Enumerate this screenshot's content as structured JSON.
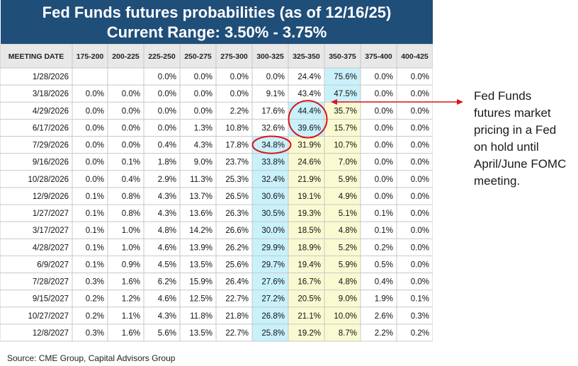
{
  "title": {
    "line1": "Fed Funds futures probabilities (as of 12/16/25)",
    "line2": "Current Range: 3.50% - 3.75%"
  },
  "annotation": {
    "lines": [
      "Fed Funds",
      "futures market",
      "pricing in a Fed",
      "on hold until",
      "April/June FOMC",
      "meeting."
    ]
  },
  "source": "Source: CME Group, Capital Advisors Group",
  "colors": {
    "title_bg": "#1f4e79",
    "current_range_col": "#fafad2",
    "adjacent_col": "#c9f1fb",
    "header_bg": "#e8e8e8",
    "annotation_red": "#d9151b"
  },
  "chart_data": {
    "type": "table",
    "columns": [
      "MEETING DATE",
      "175-200",
      "200-225",
      "225-250",
      "250-275",
      "275-300",
      "300-325",
      "325-350",
      "350-375",
      "375-400",
      "400-425"
    ],
    "rows": [
      [
        "1/28/2026",
        "",
        "",
        "0.0%",
        "0.0%",
        "0.0%",
        "0.0%",
        "24.4%",
        "75.6%",
        "0.0%",
        "0.0%"
      ],
      [
        "3/18/2026",
        "0.0%",
        "0.0%",
        "0.0%",
        "0.0%",
        "0.0%",
        "9.1%",
        "43.4%",
        "47.5%",
        "0.0%",
        "0.0%"
      ],
      [
        "4/29/2026",
        "0.0%",
        "0.0%",
        "0.0%",
        "0.0%",
        "2.2%",
        "17.6%",
        "44.4%",
        "35.7%",
        "0.0%",
        "0.0%"
      ],
      [
        "6/17/2026",
        "0.0%",
        "0.0%",
        "0.0%",
        "1.3%",
        "10.8%",
        "32.6%",
        "39.6%",
        "15.7%",
        "0.0%",
        "0.0%"
      ],
      [
        "7/29/2026",
        "0.0%",
        "0.0%",
        "0.4%",
        "4.3%",
        "17.8%",
        "34.8%",
        "31.9%",
        "10.7%",
        "0.0%",
        "0.0%"
      ],
      [
        "9/16/2026",
        "0.0%",
        "0.1%",
        "1.8%",
        "9.0%",
        "23.7%",
        "33.8%",
        "24.6%",
        "7.0%",
        "0.0%",
        "0.0%"
      ],
      [
        "10/28/2026",
        "0.0%",
        "0.4%",
        "2.9%",
        "11.3%",
        "25.3%",
        "32.4%",
        "21.9%",
        "5.9%",
        "0.0%",
        "0.0%"
      ],
      [
        "12/9/2026",
        "0.1%",
        "0.8%",
        "4.3%",
        "13.7%",
        "26.5%",
        "30.6%",
        "19.1%",
        "4.9%",
        "0.0%",
        "0.0%"
      ],
      [
        "1/27/2027",
        "0.1%",
        "0.8%",
        "4.3%",
        "13.6%",
        "26.3%",
        "30.5%",
        "19.3%",
        "5.1%",
        "0.1%",
        "0.0%"
      ],
      [
        "3/17/2027",
        "0.1%",
        "1.0%",
        "4.8%",
        "14.2%",
        "26.6%",
        "30.0%",
        "18.5%",
        "4.8%",
        "0.1%",
        "0.0%"
      ],
      [
        "4/28/2027",
        "0.1%",
        "1.0%",
        "4.6%",
        "13.9%",
        "26.2%",
        "29.9%",
        "18.9%",
        "5.2%",
        "0.2%",
        "0.0%"
      ],
      [
        "6/9/2027",
        "0.1%",
        "0.9%",
        "4.5%",
        "13.5%",
        "25.6%",
        "29.7%",
        "19.4%",
        "5.9%",
        "0.5%",
        "0.0%"
      ],
      [
        "7/28/2027",
        "0.3%",
        "1.6%",
        "6.2%",
        "15.9%",
        "26.4%",
        "27.6%",
        "16.7%",
        "4.8%",
        "0.4%",
        "0.0%"
      ],
      [
        "9/15/2027",
        "0.2%",
        "1.2%",
        "4.6%",
        "12.5%",
        "22.7%",
        "27.2%",
        "20.5%",
        "9.0%",
        "1.9%",
        "0.1%"
      ],
      [
        "10/27/2027",
        "0.2%",
        "1.1%",
        "4.3%",
        "11.8%",
        "21.8%",
        "26.8%",
        "21.1%",
        "10.0%",
        "2.6%",
        "0.3%"
      ],
      [
        "12/8/2027",
        "0.3%",
        "1.6%",
        "5.6%",
        "13.5%",
        "22.7%",
        "25.8%",
        "19.2%",
        "8.7%",
        "2.2%",
        "0.2%"
      ]
    ],
    "highlights": [
      {
        "type": "column-fill",
        "column": "325-350",
        "color": "#fafad2",
        "from_row": 2
      },
      {
        "type": "column-fill",
        "column": "350-375",
        "color": "#fafad2",
        "from_row": 2
      },
      {
        "type": "column-fill",
        "column": "300-325",
        "color": "#c9f1fb",
        "from_row": 4
      },
      {
        "type": "cell-fill",
        "row": 0,
        "column": "350-375",
        "color": "#c9f1fb"
      },
      {
        "type": "cell-fill",
        "row": 1,
        "column": "350-375",
        "color": "#c9f1fb"
      },
      {
        "type": "cell-fill",
        "row": 2,
        "column": "325-350",
        "color": "#c9f1fb"
      },
      {
        "type": "cell-fill",
        "row": 3,
        "column": "325-350",
        "color": "#c9f1fb"
      },
      {
        "type": "circle",
        "rows": [
          2,
          3
        ],
        "column": "325-350",
        "color": "#d9151b"
      },
      {
        "type": "circle",
        "rows": [
          4
        ],
        "column": "300-325",
        "color": "#d9151b"
      },
      {
        "type": "arrow",
        "direction": "both",
        "color": "#d9151b"
      }
    ]
  }
}
